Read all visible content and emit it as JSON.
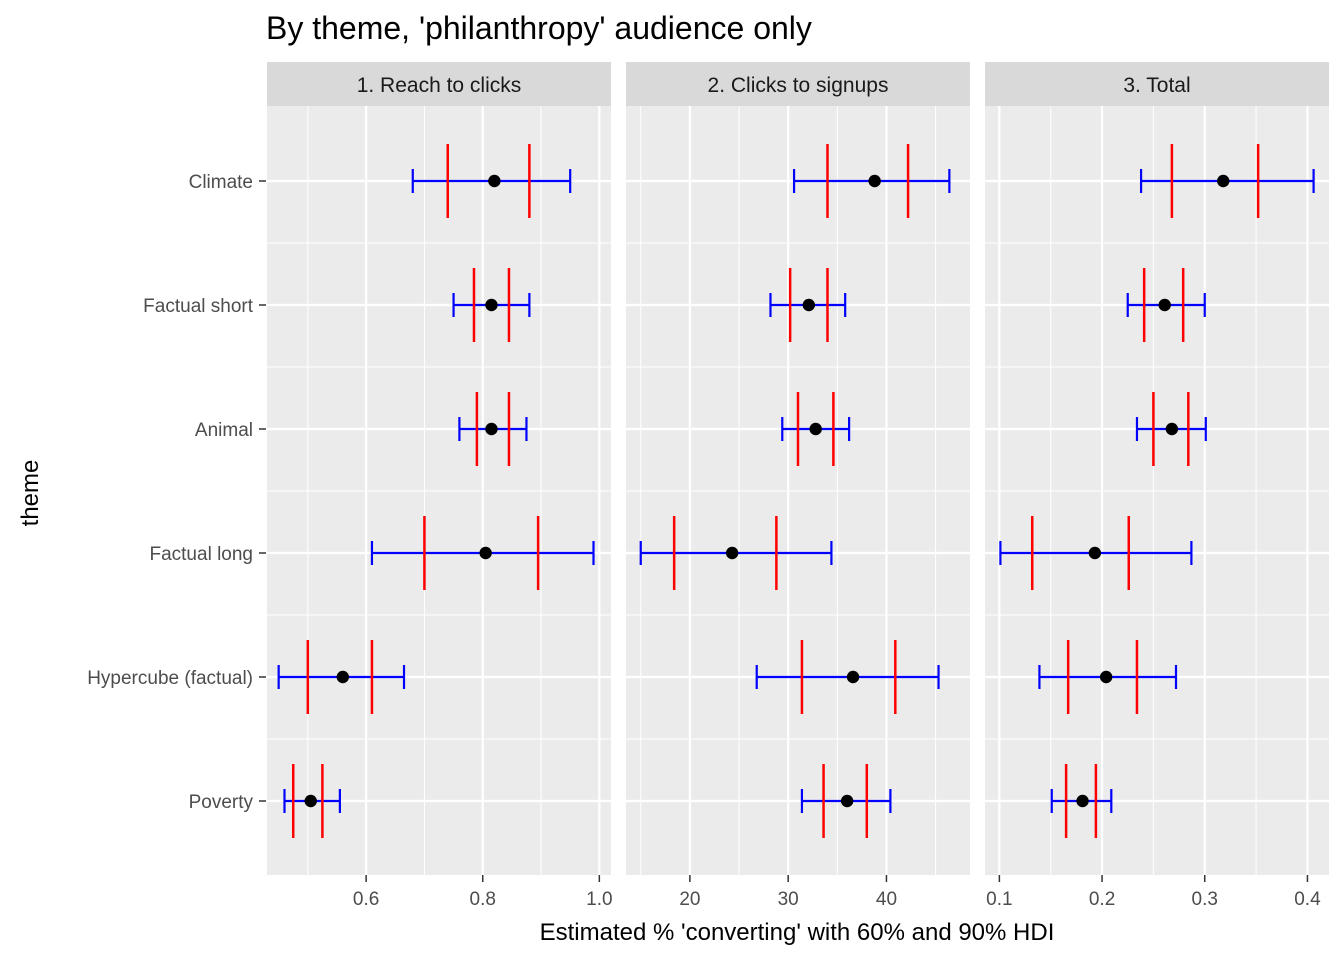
{
  "chart_data": {
    "type": "errorbar",
    "title": "By theme, 'philanthropy' audience only",
    "xlabel": "Estimated % 'converting' with 60% and 90% HDI",
    "ylabel": "theme",
    "categories": [
      "Climate",
      "Factual short",
      "Animal",
      "Factual long",
      "Hypercube (factual)",
      "Poverty"
    ],
    "grid": true,
    "colors": {
      "hdi90": "#0000FF",
      "hdi60": "#FF0000",
      "point": "#000000",
      "panel_bg": "#EBEBEB",
      "strip_bg": "#D9D9D9"
    },
    "panels": [
      {
        "label": "1. Reach to clicks",
        "xlim": [
          0.43,
          1.02
        ],
        "ticks": [
          0.6,
          0.8,
          1.0
        ],
        "tick_labels": [
          "0.6",
          "0.8",
          "1.0"
        ],
        "rows": [
          {
            "theme": "Climate",
            "point": 0.82,
            "hdi60": [
              0.74,
              0.88
            ],
            "hdi90": [
              0.68,
              0.95
            ]
          },
          {
            "theme": "Factual short",
            "point": 0.815,
            "hdi60": [
              0.785,
              0.845
            ],
            "hdi90": [
              0.75,
              0.88
            ]
          },
          {
            "theme": "Animal",
            "point": 0.815,
            "hdi60": [
              0.79,
              0.845
            ],
            "hdi90": [
              0.76,
              0.875
            ]
          },
          {
            "theme": "Factual long",
            "point": 0.805,
            "hdi60": [
              0.7,
              0.895
            ],
            "hdi90": [
              0.61,
              0.99
            ]
          },
          {
            "theme": "Hypercube (factual)",
            "point": 0.56,
            "hdi60": [
              0.5,
              0.61
            ],
            "hdi90": [
              0.45,
              0.665
            ]
          },
          {
            "theme": "Poverty",
            "point": 0.505,
            "hdi60": [
              0.475,
              0.525
            ],
            "hdi90": [
              0.46,
              0.555
            ]
          }
        ]
      },
      {
        "label": "2. Clicks to signups",
        "xlim": [
          13.5,
          48.5
        ],
        "ticks": [
          20,
          30,
          40
        ],
        "tick_labels": [
          "20",
          "30",
          "40"
        ],
        "rows": [
          {
            "theme": "Climate",
            "point": 38.8,
            "hdi60": [
              34.0,
              42.2
            ],
            "hdi90": [
              30.6,
              46.4
            ]
          },
          {
            "theme": "Factual short",
            "point": 32.1,
            "hdi60": [
              30.2,
              34.0
            ],
            "hdi90": [
              28.2,
              35.8
            ]
          },
          {
            "theme": "Animal",
            "point": 32.8,
            "hdi60": [
              31.0,
              34.6
            ],
            "hdi90": [
              29.4,
              36.2
            ]
          },
          {
            "theme": "Factual long",
            "point": 24.3,
            "hdi60": [
              18.4,
              28.8
            ],
            "hdi90": [
              15.0,
              34.4
            ]
          },
          {
            "theme": "Hypercube (factual)",
            "point": 36.6,
            "hdi60": [
              31.4,
              40.9
            ],
            "hdi90": [
              26.8,
              45.3
            ]
          },
          {
            "theme": "Poverty",
            "point": 36.0,
            "hdi60": [
              33.6,
              38.0
            ],
            "hdi90": [
              31.4,
              40.4
            ]
          }
        ]
      },
      {
        "label": "3. Total",
        "xlim": [
          0.086,
          0.421
        ],
        "ticks": [
          0.1,
          0.2,
          0.3,
          0.4
        ],
        "tick_labels": [
          "0.1",
          "0.2",
          "0.3",
          "0.4"
        ],
        "rows": [
          {
            "theme": "Climate",
            "point": 0.318,
            "hdi60": [
              0.268,
              0.352
            ],
            "hdi90": [
              0.238,
              0.406
            ]
          },
          {
            "theme": "Factual short",
            "point": 0.261,
            "hdi60": [
              0.241,
              0.279
            ],
            "hdi90": [
              0.225,
              0.3
            ]
          },
          {
            "theme": "Animal",
            "point": 0.268,
            "hdi60": [
              0.25,
              0.284
            ],
            "hdi90": [
              0.234,
              0.301
            ]
          },
          {
            "theme": "Factual long",
            "point": 0.193,
            "hdi60": [
              0.132,
              0.226
            ],
            "hdi90": [
              0.101,
              0.287
            ]
          },
          {
            "theme": "Hypercube (factual)",
            "point": 0.204,
            "hdi60": [
              0.167,
              0.234
            ],
            "hdi90": [
              0.139,
              0.272
            ]
          },
          {
            "theme": "Poverty",
            "point": 0.181,
            "hdi60": [
              0.165,
              0.194
            ],
            "hdi90": [
              0.151,
              0.209
            ]
          }
        ]
      }
    ]
  }
}
